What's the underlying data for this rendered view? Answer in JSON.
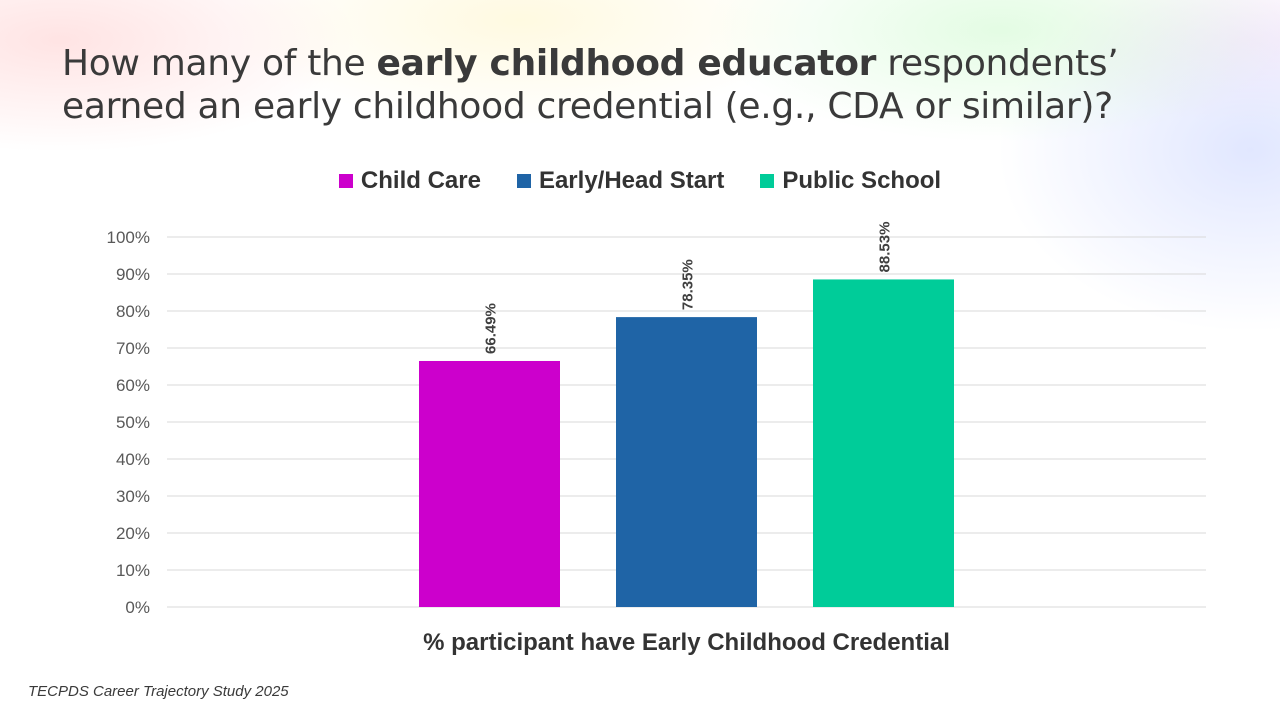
{
  "slide": {
    "title_pre": "How many of the ",
    "title_bold": "early childhood educator",
    "title_post": " respondents’ earned an early childhood credential (e.g., CDA or similar)?",
    "footer": "TECPDS Career Trajectory Study 2025"
  },
  "chart_data": {
    "type": "bar",
    "title": "How many of the early childhood educator respondents’ earned an early childhood credential (e.g., CDA or similar)?",
    "xlabel": "% participant have Early Childhood Credential",
    "ylabel": "",
    "categories": [
      "% participant have Early Childhood Credential"
    ],
    "series": [
      {
        "name": "Child Care",
        "color": "#cc00cc",
        "values": [
          66.49
        ],
        "label": "66.49%"
      },
      {
        "name": "Early/Head Start",
        "color": "#1f64a6",
        "values": [
          78.35
        ],
        "label": "78.35%"
      },
      {
        "name": "Public School",
        "color": "#00cc99",
        "values": [
          88.53
        ],
        "label": "88.53%"
      }
    ],
    "ylim": [
      0,
      100
    ],
    "yticks": [
      "0%",
      "10%",
      "20%",
      "30%",
      "40%",
      "50%",
      "60%",
      "70%",
      "80%",
      "90%",
      "100%"
    ],
    "grid": true,
    "legend_position": "top-center"
  }
}
